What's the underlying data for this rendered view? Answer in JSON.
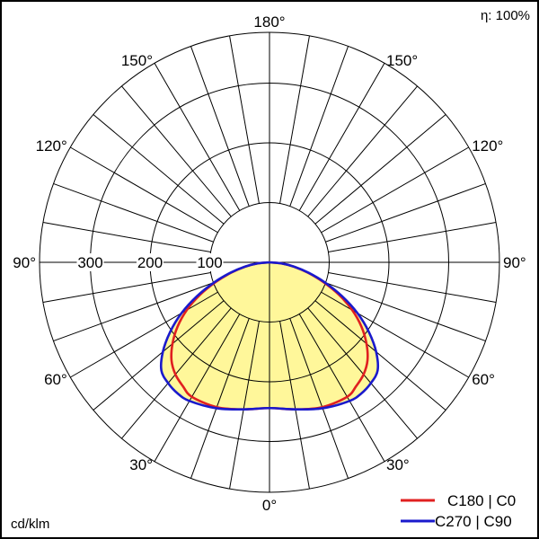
{
  "chart_data": {
    "type": "polar",
    "efficiency_label": "η: 100%",
    "unit_label": "cd/klm",
    "radial_ticks": [
      100,
      200,
      300
    ],
    "radial_tick_labels": [
      "100",
      "200",
      "300"
    ],
    "rmax": 385,
    "angle_labels": [
      {
        "text": "180°",
        "angle": 180,
        "side": "center"
      },
      {
        "text": "150°",
        "angle": 150,
        "side": "left"
      },
      {
        "text": "150°",
        "angle": 150,
        "side": "right"
      },
      {
        "text": "120°",
        "angle": 120,
        "side": "left"
      },
      {
        "text": "120°",
        "angle": 120,
        "side": "right"
      },
      {
        "text": "90°",
        "angle": 90,
        "side": "left"
      },
      {
        "text": "90°",
        "angle": 90,
        "side": "right"
      },
      {
        "text": "60°",
        "angle": 60,
        "side": "left"
      },
      {
        "text": "60°",
        "angle": 60,
        "side": "right"
      },
      {
        "text": "30°",
        "angle": 30,
        "side": "left"
      },
      {
        "text": "30°",
        "angle": 30,
        "side": "right"
      },
      {
        "text": "0°",
        "angle": 0,
        "side": "center"
      }
    ],
    "series": [
      {
        "name": "C180 | C0",
        "color": "#e02020",
        "angles": [
          0,
          10,
          20,
          30,
          35,
          40,
          45,
          50,
          55,
          60,
          65,
          70,
          75,
          80,
          85,
          90
        ],
        "values": [
          244,
          250,
          258,
          260,
          253,
          245,
          232,
          212,
          188,
          160,
          128,
          95,
          66,
          41,
          20,
          0
        ]
      },
      {
        "name": "C270 | C90",
        "color": "#1a1acc",
        "angles": [
          0,
          10,
          20,
          30,
          35,
          40,
          45,
          50,
          55,
          60,
          65,
          70,
          75,
          80,
          85,
          90
        ],
        "values": [
          244,
          250,
          260,
          268,
          268,
          264,
          256,
          233,
          203,
          170,
          134,
          99,
          68,
          42,
          20,
          0
        ]
      }
    ],
    "fill_color": "#fff79a"
  }
}
